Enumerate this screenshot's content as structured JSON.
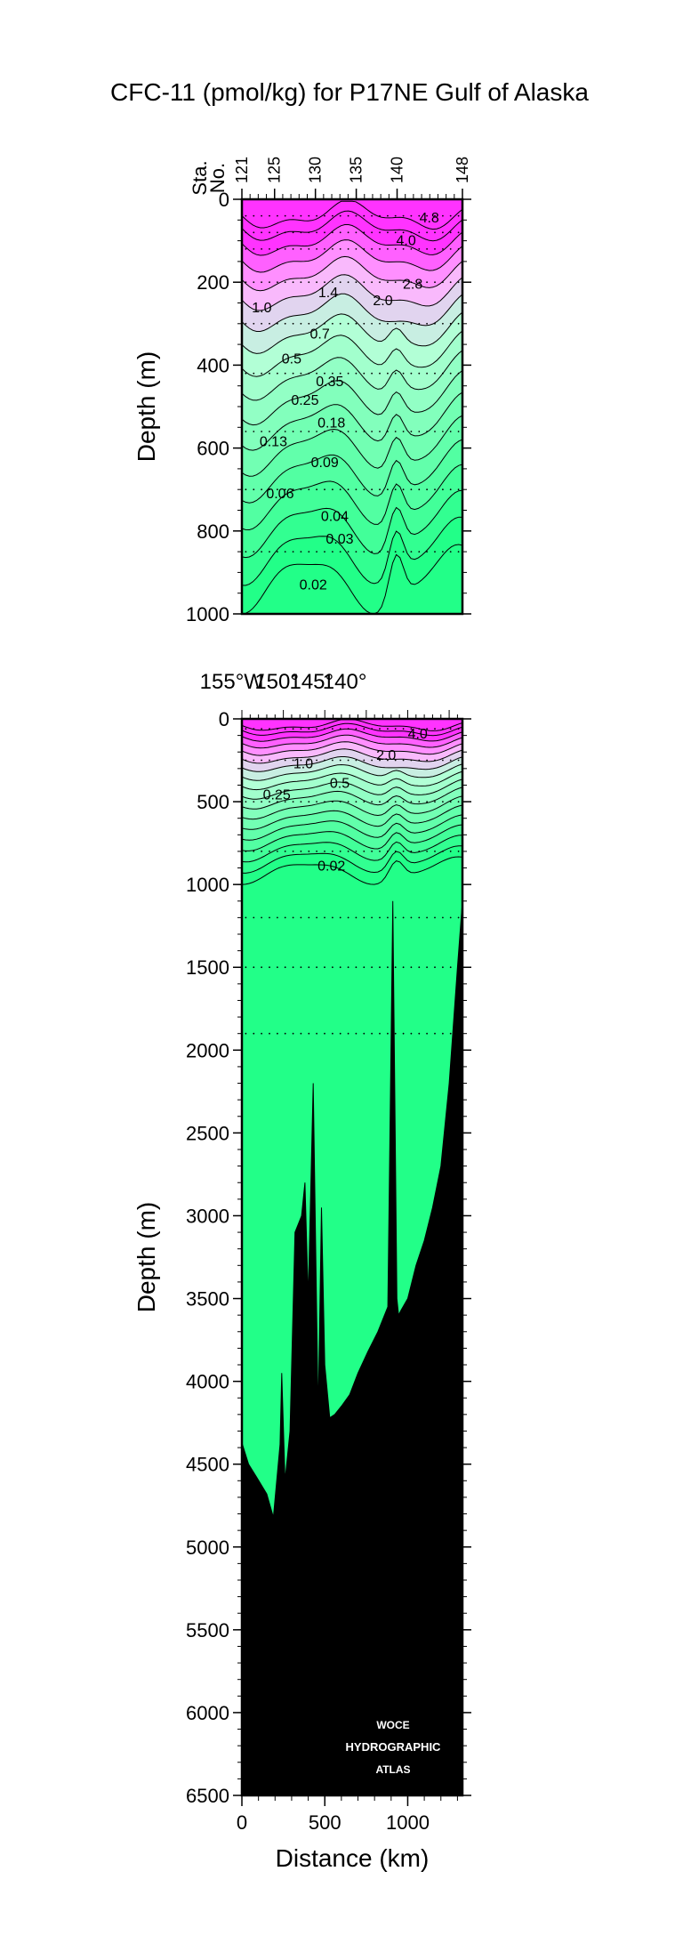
{
  "chart_data": {
    "title": "CFC-11 (pmol/kg) for P17NE Gulf of Alaska",
    "type": "heatmap",
    "variable_unit": "pmol/kg",
    "colors": {
      "high": "#ff33ff",
      "mid_high": "#ffb3ff",
      "mid": "#b8ffd9",
      "low": "#22ff88",
      "bottom": "#000000"
    },
    "upper_panel": {
      "ylabel": "Depth (m)",
      "ylim": [
        0,
        1000
      ],
      "yticks": [
        "0",
        "200",
        "400",
        "600",
        "800",
        "1000"
      ],
      "station_label": [
        "Sta.",
        "No."
      ],
      "stations": [
        "121",
        "125",
        "130",
        "135",
        "140",
        "148"
      ],
      "contour_labels": [
        {
          "text": "4.8",
          "km": 1130,
          "depth": 45
        },
        {
          "text": "4.0",
          "km": 990,
          "depth": 100
        },
        {
          "text": "2.8",
          "km": 1030,
          "depth": 205
        },
        {
          "text": "2.0",
          "km": 850,
          "depth": 245
        },
        {
          "text": "1.4",
          "km": 520,
          "depth": 225
        },
        {
          "text": "1.0",
          "km": 120,
          "depth": 262
        },
        {
          "text": "0.7",
          "km": 470,
          "depth": 325
        },
        {
          "text": "0.5",
          "km": 300,
          "depth": 385
        },
        {
          "text": "0.35",
          "km": 530,
          "depth": 440
        },
        {
          "text": "0.25",
          "km": 380,
          "depth": 485
        },
        {
          "text": "0.18",
          "km": 540,
          "depth": 540
        },
        {
          "text": "0.13",
          "km": 190,
          "depth": 585
        },
        {
          "text": "0.09",
          "km": 500,
          "depth": 635
        },
        {
          "text": "0.06",
          "km": 230,
          "depth": 710
        },
        {
          "text": "0.04",
          "km": 560,
          "depth": 765
        },
        {
          "text": "0.03",
          "km": 590,
          "depth": 820
        },
        {
          "text": "0.02",
          "km": 430,
          "depth": 930
        }
      ]
    },
    "lower_panel": {
      "ylabel": "Depth (m)",
      "ylim": [
        0,
        6500
      ],
      "yticks": [
        "0",
        "500",
        "1000",
        "1500",
        "2000",
        "2500",
        "3000",
        "3500",
        "4000",
        "4500",
        "5000",
        "5500",
        "6000",
        "6500"
      ],
      "longitudes": [
        "155°W",
        "150°",
        "145°",
        "140°"
      ],
      "xlabel": "Distance (km)",
      "xlim": [
        0,
        1330
      ],
      "xticks": [
        "0",
        "500",
        "1000"
      ],
      "contour_labels": [
        {
          "text": "4.0",
          "km": 1060,
          "depth": 90
        },
        {
          "text": "2.0",
          "km": 870,
          "depth": 220
        },
        {
          "text": "1.0",
          "km": 370,
          "depth": 270
        },
        {
          "text": "0.5",
          "km": 590,
          "depth": 390
        },
        {
          "text": "0.25",
          "km": 210,
          "depth": 460
        },
        {
          "text": "0.02",
          "km": 540,
          "depth": 890
        }
      ],
      "bottom_km": [
        0,
        40,
        90,
        150,
        190,
        230,
        240,
        260,
        290,
        320,
        360,
        380,
        400,
        430,
        460,
        480,
        500,
        530,
        560,
        600,
        650,
        700,
        760,
        820,
        880,
        910,
        935,
        945,
        960,
        1000,
        1050,
        1100,
        1150,
        1200,
        1250,
        1300,
        1330
      ],
      "bottom_depth": [
        4370,
        4500,
        4580,
        4680,
        4820,
        4380,
        3950,
        4600,
        4300,
        3100,
        3000,
        2800,
        3500,
        2200,
        4200,
        2950,
        3900,
        4220,
        4200,
        4150,
        4080,
        3950,
        3820,
        3700,
        3550,
        1100,
        3500,
        3600,
        3570,
        3500,
        3300,
        3150,
        2950,
        2700,
        2200,
        1500,
        1100
      ],
      "watermark": [
        "WOCE",
        "HYDROGRAPHIC",
        "ATLAS"
      ]
    }
  }
}
